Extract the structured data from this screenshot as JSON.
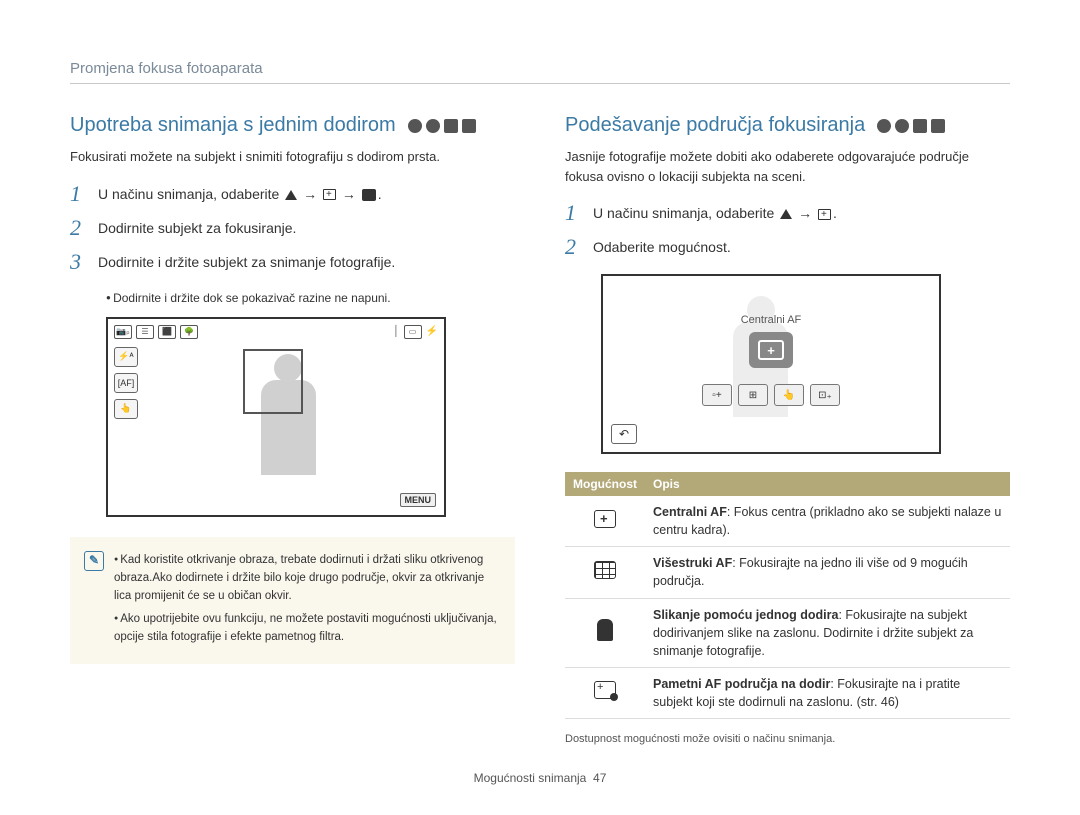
{
  "header": {
    "title": "Promjena fokusa fotoaparata"
  },
  "left": {
    "title": "Upotreba snimanja s jednim dodirom",
    "intro": "Fokusirati možete na subjekt i snimiti fotografiju s dodirom prsta.",
    "steps": {
      "s1_prefix": "U načinu snimanja, odaberite ",
      "s1_suffix": ".",
      "s2": "Dodirnite subjekt za fokusiranje.",
      "s3": "Dodirnite i držite subjekt za snimanje fotografije.",
      "s3_sub": "Dodirnite i držite dok se pokazivač razine ne napuni."
    },
    "preview": {
      "side_labels": [
        "⚡ᴬ",
        "[AF]",
        "👆"
      ],
      "top_left_icons": [
        "📷ₚ",
        "☰",
        "⬛",
        "🌳"
      ],
      "top_right_icons": [
        "│",
        "▭",
        "⚡"
      ],
      "menu": "MENU"
    },
    "note": {
      "items": [
        "Kad koristite otkrivanje obraza, trebate dodirnuti i držati sliku otkrivenog obraza.Ako dodirnete i držite bilo koje drugo područje, okvir za otkrivanje lica promijenit će se u običan okvir.",
        "Ako upotrijebite ovu funkciju, ne možete postaviti mogućnosti uključivanja, opcije stila fotografije i efekte pametnog filtra."
      ]
    }
  },
  "right": {
    "title": "Podešavanje područja fokusiranja",
    "intro": "Jasnije fotografije možete dobiti ako odaberete odgovarajuće područje fokusa ovisno o lokaciji subjekta na sceni.",
    "steps": {
      "s1_prefix": "U načinu snimanja, odaberite ",
      "s1_suffix": ".",
      "s2": "Odaberite mogućnost."
    },
    "preview": {
      "center_label": "Centralni AF",
      "center_symbol": "+",
      "row": [
        "▫+",
        "⊞",
        "👆",
        "⊡₊"
      ],
      "back": "↶"
    },
    "table": {
      "headers": [
        "Mogućnost",
        "Opis"
      ],
      "rows": [
        {
          "label": "Centralni AF",
          "desc": ": Fokus centra (prikladno ako se subjekti nalaze u centru kadra)."
        },
        {
          "label": "Višestruki AF",
          "desc": ": Fokusirajte na jedno ili više od 9 mogućih područja."
        },
        {
          "label": "Slikanje pomoću jednog dodira",
          "desc": ": Fokusirajte na subjekt dodirivanjem slike na zaslonu. Dodirnite i držite subjekt za snimanje fotografije."
        },
        {
          "label": "Pametni AF područja na dodir",
          "desc": ": Fokusirajte na i pratite subjekt koji ste dodirnuli na zaslonu. (str. 46)"
        }
      ]
    },
    "footnote": "Dostupnost mogućnosti može ovisiti o načinu snimanja."
  },
  "footer": {
    "text": "Mogućnosti snimanja",
    "page": "47"
  },
  "colors": {
    "heading": "#3b7aa5",
    "header_text": "#7a8a98",
    "table_header_bg": "#b3a878",
    "note_bg": "#faf7ed"
  }
}
